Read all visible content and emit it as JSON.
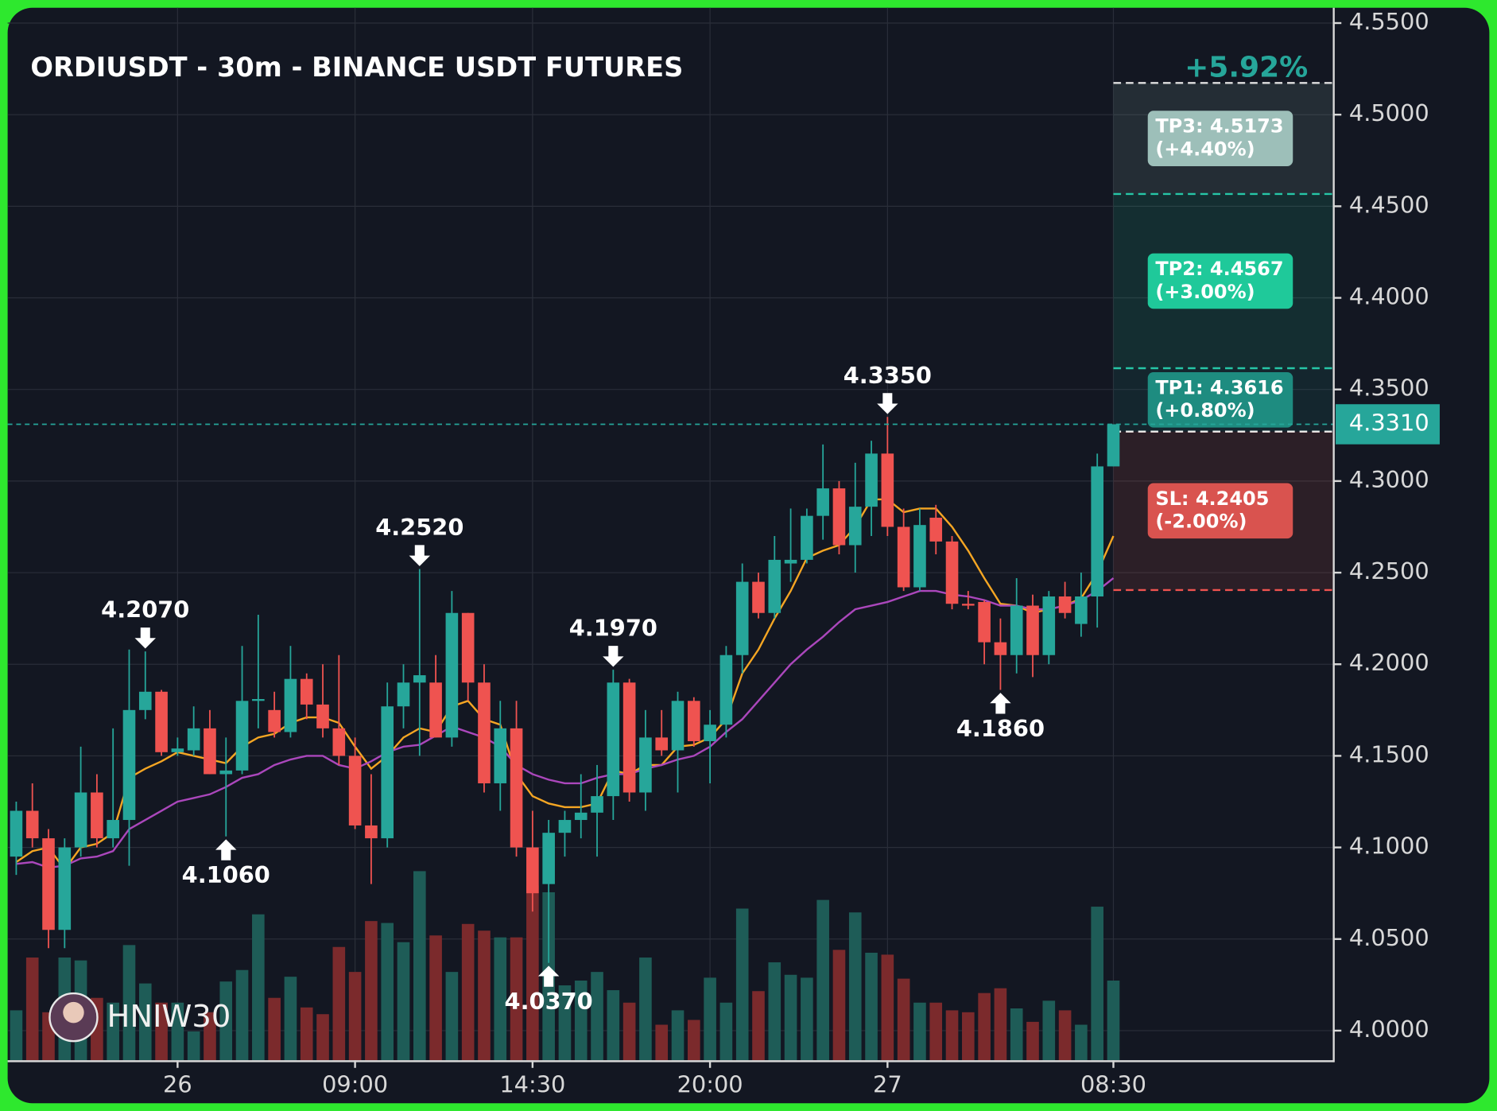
{
  "chart_data": {
    "type": "candlestick",
    "title": "ORDIUSDT - 30m - BINANCE USDT FUTURES",
    "change": "+5.92%",
    "watermark": "HNIW30",
    "categories": [
      null,
      null,
      null,
      null,
      null,
      null,
      null,
      null,
      null,
      null,
      "26",
      null,
      null,
      null,
      null,
      null,
      null,
      null,
      null,
      null,
      null,
      "09:00",
      null,
      null,
      null,
      null,
      null,
      null,
      null,
      null,
      null,
      null,
      "14:30",
      null,
      null,
      null,
      null,
      null,
      null,
      null,
      null,
      null,
      null,
      "20:00",
      null,
      null,
      null,
      null,
      null,
      null,
      null,
      null,
      null,
      null,
      "27",
      null,
      null,
      null,
      null,
      null,
      null,
      null,
      null,
      null,
      null,
      null,
      null,
      null,
      "08:30"
    ],
    "open": [
      4.095,
      4.12,
      4.105,
      4.055,
      4.1,
      4.13,
      4.105,
      4.115,
      4.175,
      4.185,
      4.152,
      4.153,
      4.165,
      4.14,
      4.142,
      4.18,
      4.175,
      4.163,
      4.192,
      4.178,
      4.165,
      4.15,
      4.112,
      4.105,
      4.177,
      4.19,
      4.19,
      4.16,
      4.228,
      4.19,
      4.135,
      4.165,
      4.1,
      4.08,
      4.108,
      4.115,
      4.119,
      4.128,
      4.19,
      4.13,
      4.16,
      4.153,
      4.18,
      4.158,
      4.167,
      4.205,
      4.245,
      4.228,
      4.255,
      4.257,
      4.281,
      4.296,
      4.265,
      4.286,
      4.315,
      4.275,
      4.242,
      4.28,
      4.267,
      4.233,
      4.234,
      4.212,
      4.205,
      4.232,
      4.205,
      4.237,
      4.222,
      4.237,
      4.308
    ],
    "high": [
      4.125,
      4.135,
      4.11,
      4.105,
      4.155,
      4.14,
      4.165,
      4.208,
      4.207,
      4.186,
      4.16,
      4.177,
      4.175,
      4.16,
      4.21,
      4.227,
      4.185,
      4.21,
      4.195,
      4.2,
      4.205,
      4.16,
      4.14,
      4.19,
      4.2,
      4.252,
      4.205,
      4.24,
      4.228,
      4.2,
      4.18,
      4.18,
      4.12,
      4.115,
      4.12,
      4.14,
      4.145,
      4.197,
      4.192,
      4.175,
      4.175,
      4.185,
      4.182,
      4.175,
      4.21,
      4.255,
      4.25,
      4.27,
      4.285,
      4.285,
      4.32,
      4.3,
      4.31,
      4.322,
      4.335,
      4.285,
      4.285,
      4.287,
      4.27,
      4.24,
      4.235,
      4.225,
      4.247,
      4.238,
      4.24,
      4.245,
      4.25,
      4.315,
      4.331
    ],
    "low": [
      4.085,
      4.1,
      4.045,
      4.045,
      4.095,
      4.1,
      4.1,
      4.09,
      4.17,
      4.15,
      4.15,
      4.15,
      4.14,
      4.106,
      4.14,
      4.165,
      4.16,
      4.16,
      4.17,
      4.16,
      4.145,
      4.11,
      4.08,
      4.1,
      4.165,
      4.15,
      4.16,
      4.155,
      4.18,
      4.13,
      4.12,
      4.095,
      4.065,
      4.037,
      4.095,
      4.105,
      4.095,
      4.115,
      4.125,
      4.12,
      4.15,
      4.13,
      4.155,
      4.135,
      4.16,
      4.195,
      4.225,
      4.225,
      4.245,
      4.255,
      4.268,
      4.26,
      4.25,
      4.27,
      4.27,
      4.24,
      4.24,
      4.26,
      4.23,
      4.23,
      4.2,
      4.186,
      4.195,
      4.193,
      4.2,
      4.225,
      4.215,
      4.22,
      4.308
    ],
    "close": [
      4.12,
      4.105,
      4.055,
      4.1,
      4.13,
      4.105,
      4.115,
      4.175,
      4.185,
      4.152,
      4.154,
      4.165,
      4.14,
      4.142,
      4.18,
      4.181,
      4.163,
      4.192,
      4.178,
      4.165,
      4.15,
      4.112,
      4.105,
      4.177,
      4.19,
      4.194,
      4.16,
      4.228,
      4.19,
      4.135,
      4.165,
      4.1,
      4.075,
      4.108,
      4.115,
      4.119,
      4.128,
      4.19,
      4.13,
      4.16,
      4.153,
      4.18,
      4.158,
      4.167,
      4.205,
      4.245,
      4.228,
      4.257,
      4.257,
      4.281,
      4.296,
      4.265,
      4.286,
      4.315,
      4.275,
      4.242,
      4.276,
      4.267,
      4.233,
      4.232,
      4.212,
      4.205,
      4.232,
      4.205,
      4.237,
      4.228,
      4.237,
      4.308,
      4.331
    ],
    "volume": [
      52,
      107,
      50,
      107,
      104,
      65,
      60,
      120,
      80,
      60,
      60,
      30,
      50,
      82,
      94,
      152,
      65,
      87,
      55,
      48,
      118,
      92,
      145,
      143,
      123,
      197,
      130,
      92,
      142,
      135,
      128,
      128,
      182,
      175,
      78,
      83,
      92,
      73,
      60,
      107,
      37,
      52,
      42,
      86,
      60,
      158,
      72,
      102,
      89,
      86,
      167,
      115,
      154,
      112,
      110,
      85,
      60,
      60,
      52,
      50,
      70,
      75,
      54,
      40,
      62,
      52,
      37,
      160,
      83
    ],
    "ma_lines": [
      {
        "color": "#f5a623",
        "values": [
          4.092,
          4.098,
          4.1,
          4.088,
          4.1,
          4.102,
          4.108,
          4.138,
          4.143,
          4.147,
          4.152,
          4.15,
          4.148,
          4.146,
          4.155,
          4.16,
          4.162,
          4.168,
          4.171,
          4.171,
          4.168,
          4.155,
          4.143,
          4.15,
          4.16,
          4.165,
          4.163,
          4.177,
          4.18,
          4.17,
          4.167,
          4.14,
          4.128,
          4.124,
          4.122,
          4.122,
          4.124,
          4.142,
          4.14,
          4.145,
          4.145,
          4.155,
          4.156,
          4.16,
          4.17,
          4.195,
          4.208,
          4.225,
          4.24,
          4.258,
          4.262,
          4.265,
          4.275,
          4.29,
          4.29,
          4.283,
          4.285,
          4.285,
          4.275,
          4.262,
          4.247,
          4.233,
          4.232,
          4.228,
          4.23,
          4.232,
          4.236,
          4.25,
          4.27
        ]
      },
      {
        "color": "#ab47bc",
        "values": [
          4.091,
          4.092,
          4.089,
          4.09,
          4.094,
          4.095,
          4.098,
          4.11,
          4.115,
          4.12,
          4.125,
          4.127,
          4.129,
          4.133,
          4.138,
          4.14,
          4.145,
          4.148,
          4.15,
          4.15,
          4.145,
          4.143,
          4.147,
          4.152,
          4.155,
          4.156,
          4.161,
          4.166,
          4.163,
          4.16,
          4.155,
          4.145,
          4.14,
          4.137,
          4.135,
          4.135,
          4.138,
          4.14,
          4.14,
          4.143,
          4.145,
          4.148,
          4.15,
          4.155,
          4.163,
          4.17,
          4.18,
          4.19,
          4.2,
          4.208,
          4.215,
          4.223,
          4.23,
          4.232,
          4.234,
          4.237,
          4.24,
          4.24,
          4.238,
          4.237,
          4.235,
          4.232,
          4.232,
          4.23,
          4.23,
          4.232,
          4.235,
          4.24,
          4.247
        ]
      }
    ],
    "up_color": "#26a69a",
    "down_color": "#ef5350",
    "up_volume_color": "#1e5c57",
    "down_volume_color": "#7b2a2c",
    "markers": [
      {
        "index": 8,
        "value": 4.207,
        "label": "4.2070",
        "dir": "down"
      },
      {
        "index": 13,
        "value": 4.106,
        "label": "4.1060",
        "dir": "up"
      },
      {
        "index": 25,
        "value": 4.252,
        "label": "4.2520",
        "dir": "down"
      },
      {
        "index": 33,
        "value": 4.037,
        "label": "4.0370",
        "dir": "up"
      },
      {
        "index": 37,
        "value": 4.197,
        "label": "4.1970",
        "dir": "down"
      },
      {
        "index": 54,
        "value": 4.335,
        "label": "4.3350",
        "dir": "down"
      },
      {
        "index": 61,
        "value": 4.186,
        "label": "4.1860",
        "dir": "up"
      }
    ],
    "entry": 4.327,
    "targets": [
      {
        "label": "TP3: 4.5173",
        "pct": "(+4.40%)",
        "value": 4.5173,
        "color": "#9dbfb9",
        "line": "#e0e0e0"
      },
      {
        "label": "TP2: 4.4567",
        "pct": "(+3.00%)",
        "value": 4.4567,
        "color": "#1fc99a",
        "line": "#26c6a6"
      },
      {
        "label": "TP1: 4.3616",
        "pct": "(+0.80%)",
        "value": 4.3616,
        "color": "#1e8c80",
        "line": "#26c6a6"
      },
      {
        "label": "SL: 4.2405",
        "pct": "(-2.00%)",
        "value": 4.2405,
        "color": "#d9534f",
        "line": "#ef5350"
      }
    ],
    "last_price": {
      "value": 4.331,
      "label": "4.3310"
    },
    "ylim": [
      4.0,
      4.55
    ],
    "yticks": [
      {
        "value": 4.0,
        "label": "4.0000"
      },
      {
        "value": 4.05,
        "label": "4.0500"
      },
      {
        "value": 4.1,
        "label": "4.1000"
      },
      {
        "value": 4.15,
        "label": "4.1500"
      },
      {
        "value": 4.2,
        "label": "4.2000"
      },
      {
        "value": 4.25,
        "label": "4.2500"
      },
      {
        "value": 4.3,
        "label": "4.3000"
      },
      {
        "value": 4.35,
        "label": "4.3500"
      },
      {
        "value": 4.4,
        "label": "4.4000"
      },
      {
        "value": 4.45,
        "label": "4.4500"
      },
      {
        "value": 4.5,
        "label": "4.5000"
      },
      {
        "value": 4.55,
        "label": "4.5500"
      }
    ],
    "grid": true
  }
}
